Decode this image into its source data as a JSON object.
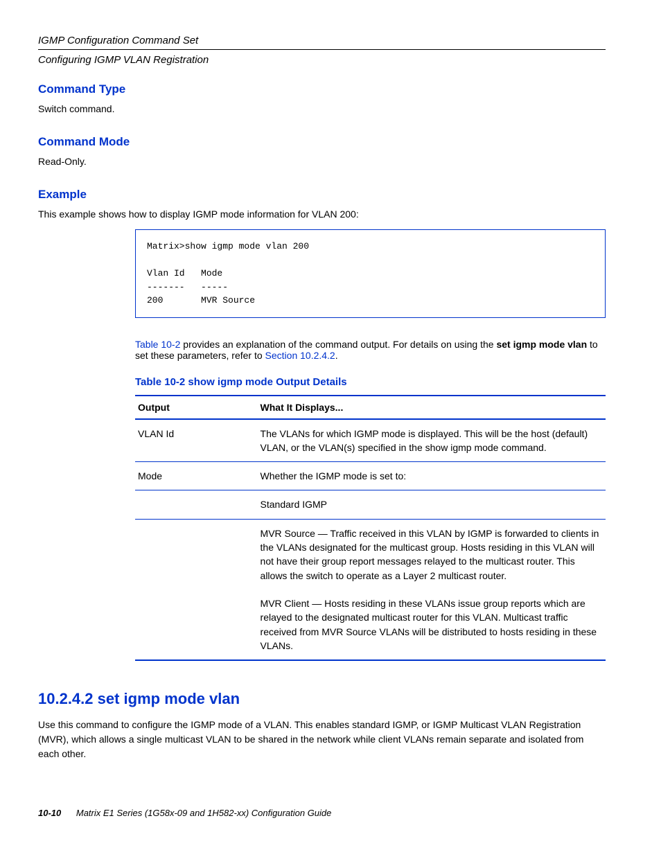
{
  "header": {
    "title": "IGMP Configuration Command Set",
    "subtitle": "Configuring IGMP VLAN Registration"
  },
  "sections": {
    "command_type": {
      "heading": "Command Type",
      "body": "Switch command."
    },
    "command_mode": {
      "heading": "Command Mode",
      "body": "Read-Only."
    },
    "example": {
      "heading": "Example",
      "body": "This example shows how to display IGMP mode information for VLAN 200:"
    }
  },
  "example_box": "Matrix>show igmp mode vlan 200 \n\nVlan Id   Mode                                 \n-------   -----                                \n200       MVR Source",
  "table_ref": {
    "prefix_xref": "Table 10-2",
    "prefix_rest": " provides an explanation of the command output. For details on using the ",
    "bold_cmd": "set igmp mode vlan",
    "middle": " to set these parameters, refer to ",
    "section_xref": "Section 10.2.4.2",
    "end": "."
  },
  "table": {
    "caption": "Table 10-2    show igmp mode Output Details",
    "columns": [
      "Output",
      "What It Displays..."
    ],
    "rows": [
      [
        "VLAN Id",
        "The VLANs for which IGMP mode is displayed. This will be the host (default) VLAN, or the VLAN(s) specified in the show igmp mode command."
      ],
      [
        "Mode",
        "Whether the IGMP mode is set to:"
      ],
      [
        "",
        "Standard IGMP"
      ],
      [
        "",
        "MVR Source — Traffic received in this VLAN by IGMP is forwarded to clients in the VLANs designated for the multicast group. Hosts residing in this VLAN will not have their group report messages relayed to the multicast router. This allows the switch to operate as a Layer 2 multicast router.\n\nMVR Client — Hosts residing in these VLANs issue group reports which are relayed to the designated multicast router for this VLAN. Multicast traffic received from MVR Source VLANs will be distributed to hosts residing in these VLANs."
      ]
    ]
  },
  "command": {
    "heading": "10.2.4.2  set igmp mode vlan",
    "desc": "Use this command to configure the IGMP mode of a VLAN. This enables standard IGMP, or IGMP Multicast VLAN Registration (MVR), which allows a single multicast VLAN to be shared in the network while client VLANs remain separate and isolated from each other."
  },
  "footer": {
    "pagenum": "10-10",
    "guide": "Matrix E1 Series (1G58x-09 and 1H582-xx) Configuration Guide"
  },
  "colors": {
    "accent": "#0033cc",
    "text": "#000000",
    "background": "#ffffff"
  }
}
